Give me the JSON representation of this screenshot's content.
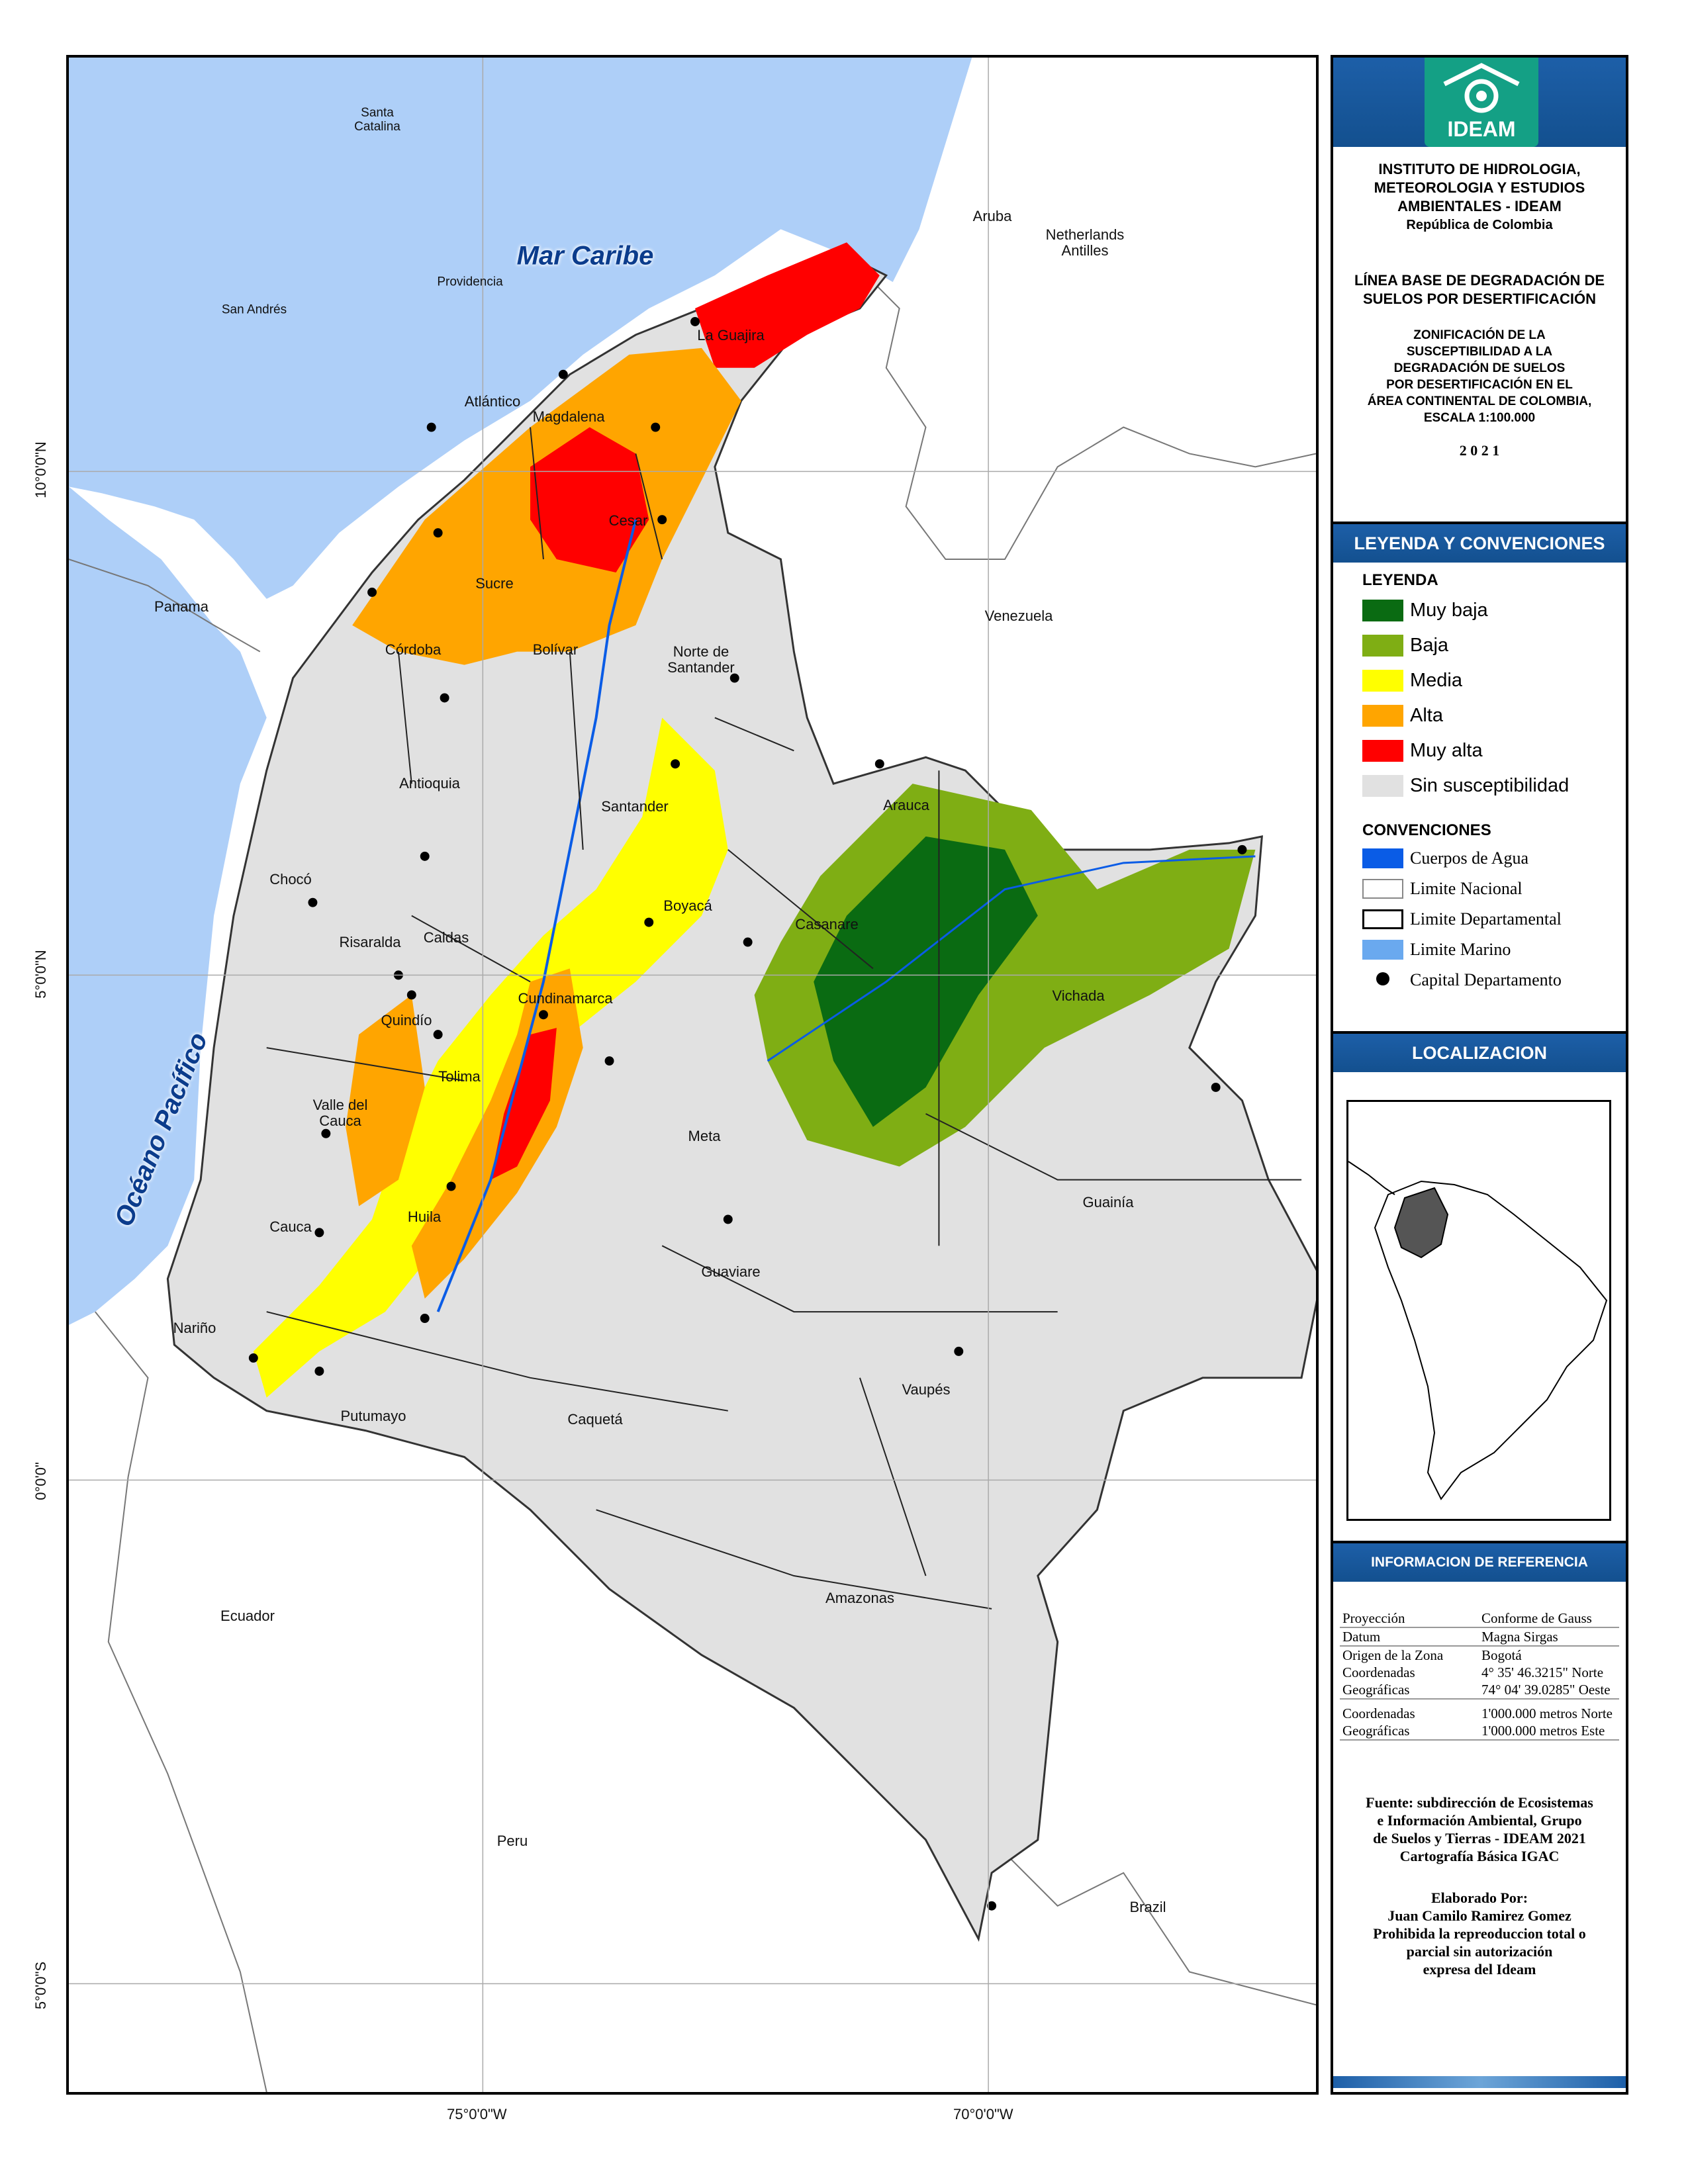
{
  "map": {
    "sea_labels": {
      "caribbean": "Mar Caribe",
      "pacific": "Océano Pacífico"
    },
    "country_labels": {
      "panama": "Panama",
      "venezuela": "Venezuela",
      "ecuador": "Ecuador",
      "peru": "Peru",
      "brazil": "Brazil",
      "aruba": "Aruba",
      "netherlands_antilles": "Netherlands\nAntilles",
      "santa_catalina": "Santa\nCatalina",
      "providencia": "Providencia",
      "san_andres": "San Andrés"
    },
    "department_labels": {
      "la_guajira": "La Guajira",
      "atlantico": "Atlántico",
      "magdalena": "Magdalena",
      "cesar": "Cesar",
      "sucre": "Sucre",
      "cordoba": "Córdoba",
      "bolivar": "Bolívar",
      "norte_santander": "Norte de\nSantander",
      "antioquia": "Antioquia",
      "santander": "Santander",
      "choco": "Chocó",
      "boyaca": "Boyacá",
      "arauca": "Arauca",
      "casanare": "Casanare",
      "risaralda": "Risaralda",
      "caldas": "Caldas",
      "cundinamarca": "Cundinamarca",
      "quindio": "Quindío",
      "vichada": "Vichada",
      "tolima": "Tolima",
      "valle": "Valle del\nCauca",
      "meta": "Meta",
      "cauca": "Cauca",
      "huila": "Huila",
      "guainia": "Guainía",
      "guaviare": "Guaviare",
      "narino": "Nariño",
      "vaupes": "Vaupés",
      "putumayo": "Putumayo",
      "caqueta": "Caquetá",
      "amazonas": "Amazonas"
    },
    "grid_labels": {
      "lon_75": "75°0'0\"W",
      "lon_70": "70°0'0\"W",
      "lat_10": "10°0'0\"N",
      "lat_5": "5°0'0\"N",
      "lat_0": "0°0'0\"",
      "lat_m5": "5°0'0\"S"
    },
    "colors": {
      "sea": "#aecff8",
      "land_colombia": "#e1e1e1",
      "muy_baja": "#0a6b12",
      "baja": "#7fae14",
      "media": "#ffff00",
      "alta": "#ffa500",
      "muy_alta": "#ff0000",
      "water": "#0a5ce6"
    }
  },
  "panel": {
    "logo": {
      "text": "IDEAM",
      "icon": "ideam-logo-icon",
      "color": "#14a085"
    },
    "institute": [
      "INSTITUTO DE HIDROLOGIA,",
      "METEOROLOGIA Y ESTUDIOS",
      "AMBIENTALES - IDEAM"
    ],
    "country": "República de Colombia",
    "project": [
      "LÍNEA BASE DE DEGRADACIÓN DE",
      "SUELOS POR DESERTIFICACIÓN"
    ],
    "title": [
      "ZONIFICACIÓN DE LA",
      "SUSCEPTIBILIDAD A LA",
      "DEGRADACIÓN DE SUELOS",
      "POR DESERTIFICACIÓN EN EL",
      "ÁREA CONTINENTAL DE COLOMBIA,",
      "ESCALA 1:100.000"
    ],
    "year": "2 0 2 1",
    "legend_header": "LEYENDA Y CONVENCIONES",
    "legend_title": "LEYENDA",
    "legend": [
      {
        "label": "Muy baja",
        "color": "#0a6b12"
      },
      {
        "label": "Baja",
        "color": "#7fae14"
      },
      {
        "label": "Media",
        "color": "#ffff00"
      },
      {
        "label": "Alta",
        "color": "#ffa500"
      },
      {
        "label": "Muy alta",
        "color": "#ff0000"
      },
      {
        "label": "Sin susceptibilidad",
        "color": "#e1e1e1"
      }
    ],
    "conventions_title": "CONVENCIONES",
    "conventions": [
      {
        "label": "Cuerpos de Agua"
      },
      {
        "label": "Limite Nacional"
      },
      {
        "label": "Limite Departamental"
      },
      {
        "label": "Limite Marino"
      },
      {
        "label": "Capital Departamento"
      }
    ],
    "localization_header": "LOCALIZACION",
    "reference_header": "INFORMACION DE REFERENCIA",
    "reference": {
      "proyeccion_k": "Proyección",
      "proyeccion_v": "Conforme de Gauss",
      "datum_k": "Datum",
      "datum_v": "Magna Sirgas",
      "origen_k": "Origen de la Zona",
      "origen_v": "Bogotá",
      "coord_k1": "Coordenadas",
      "coord_v1": "4° 35' 46.3215\" Norte",
      "geo_k1": "Geográficas",
      "geo_v1": "74° 04' 39.0285\" Oeste",
      "coord_k2": "Coordenadas",
      "coord_v2": "1'000.000 metros Norte",
      "geo_k2": "Geográficas",
      "geo_v2": "1'000.000 metros Este"
    },
    "source": [
      "Fuente: subdirección de Ecosistemas",
      "e Información Ambiental, Grupo",
      "de Suelos y Tierras - IDEAM 2021",
      "Cartografía Básica IGAC"
    ],
    "credits": [
      "Elaborado Por:",
      "Juan Camilo Ramirez Gomez",
      "Prohibida la repreoduccion total o",
      "parcial sin autorización",
      "expresa del Ideam"
    ]
  }
}
